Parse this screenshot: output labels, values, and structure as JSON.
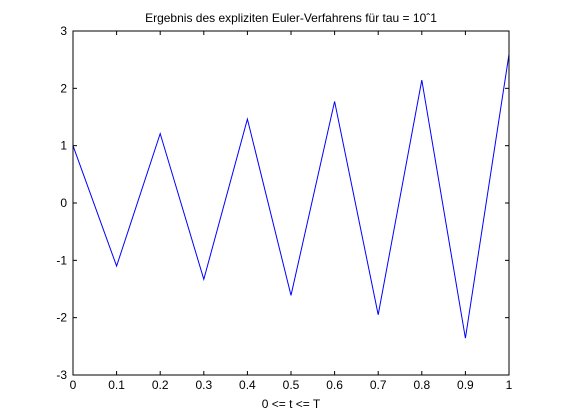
{
  "chart_data": {
    "type": "line",
    "title": "Ergebnis des expliziten Euler-Verfahrens für tau = 10ˆ1",
    "xlabel": "0 <= t <= T",
    "ylabel": "",
    "xlim": [
      0,
      1
    ],
    "ylim": [
      -3,
      3
    ],
    "xticks": [
      "0",
      "0.1",
      "0.2",
      "0.3",
      "0.4",
      "0.5",
      "0.6",
      "0.7",
      "0.8",
      "0.9",
      "1"
    ],
    "yticks": [
      "-3",
      "-2",
      "-1",
      "0",
      "1",
      "2",
      "3"
    ],
    "grid": false,
    "series": [
      {
        "color": "#0000ff",
        "x": [
          0,
          0.1,
          0.2,
          0.3,
          0.4,
          0.5,
          0.6,
          0.7,
          0.8,
          0.9,
          1.0
        ],
        "y": [
          1.0,
          -1.1,
          1.21,
          -1.331,
          1.4641,
          -1.6105,
          1.7716,
          -1.9487,
          2.1436,
          -2.3579,
          2.5937
        ]
      }
    ]
  }
}
